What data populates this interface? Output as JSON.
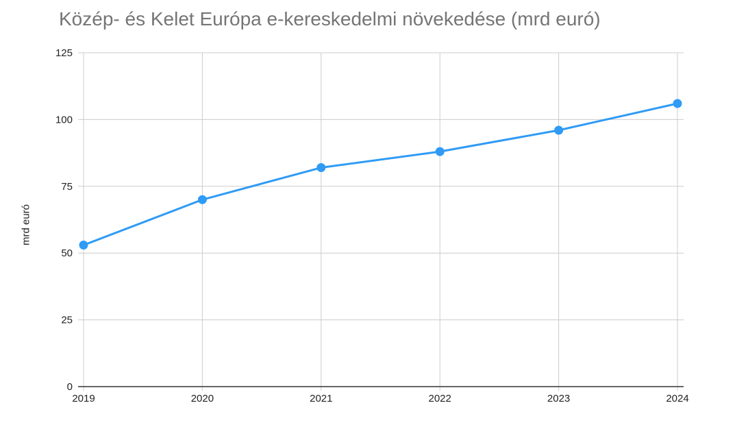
{
  "chart_data": {
    "type": "line",
    "title": "Közép- és Kelet Európa e-kereskedelmi növekedése (mrd euró)",
    "xlabel": "",
    "ylabel": "mrd euró",
    "categories": [
      "2019",
      "2020",
      "2021",
      "2022",
      "2023",
      "2024"
    ],
    "series": [
      {
        "values": [
          53,
          70,
          82,
          88,
          96,
          106
        ],
        "color": "#2f9bf5",
        "marker": "circle"
      }
    ],
    "ylim": [
      0,
      125
    ],
    "yticks": [
      "0",
      "25",
      "50",
      "75",
      "100",
      "125"
    ],
    "grid": true,
    "legend": "none",
    "colors": {
      "line": "#2f9bf5",
      "grid": "#cccccc",
      "baseline": "#333333",
      "title": "#757575"
    }
  }
}
